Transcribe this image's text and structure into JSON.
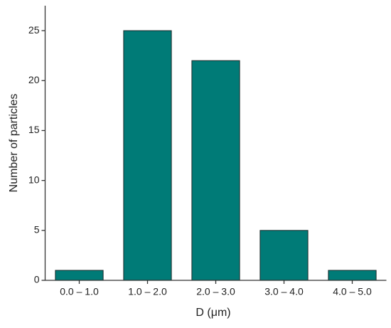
{
  "chart_data": {
    "type": "bar",
    "x_label": "D (μm)",
    "y_label": "Number of particles",
    "categories": [
      "0.0 – 1.0",
      "1.0 – 2.0",
      "2.0 – 3.0",
      "3.0 – 4.0",
      "4.0 – 5.0"
    ],
    "values": [
      1,
      25,
      22,
      5,
      1
    ],
    "color": "#007b77",
    "ylim": [
      0,
      27.5
    ],
    "yticks": [
      0,
      5,
      10,
      15,
      20,
      25
    ],
    "grid": false
  }
}
